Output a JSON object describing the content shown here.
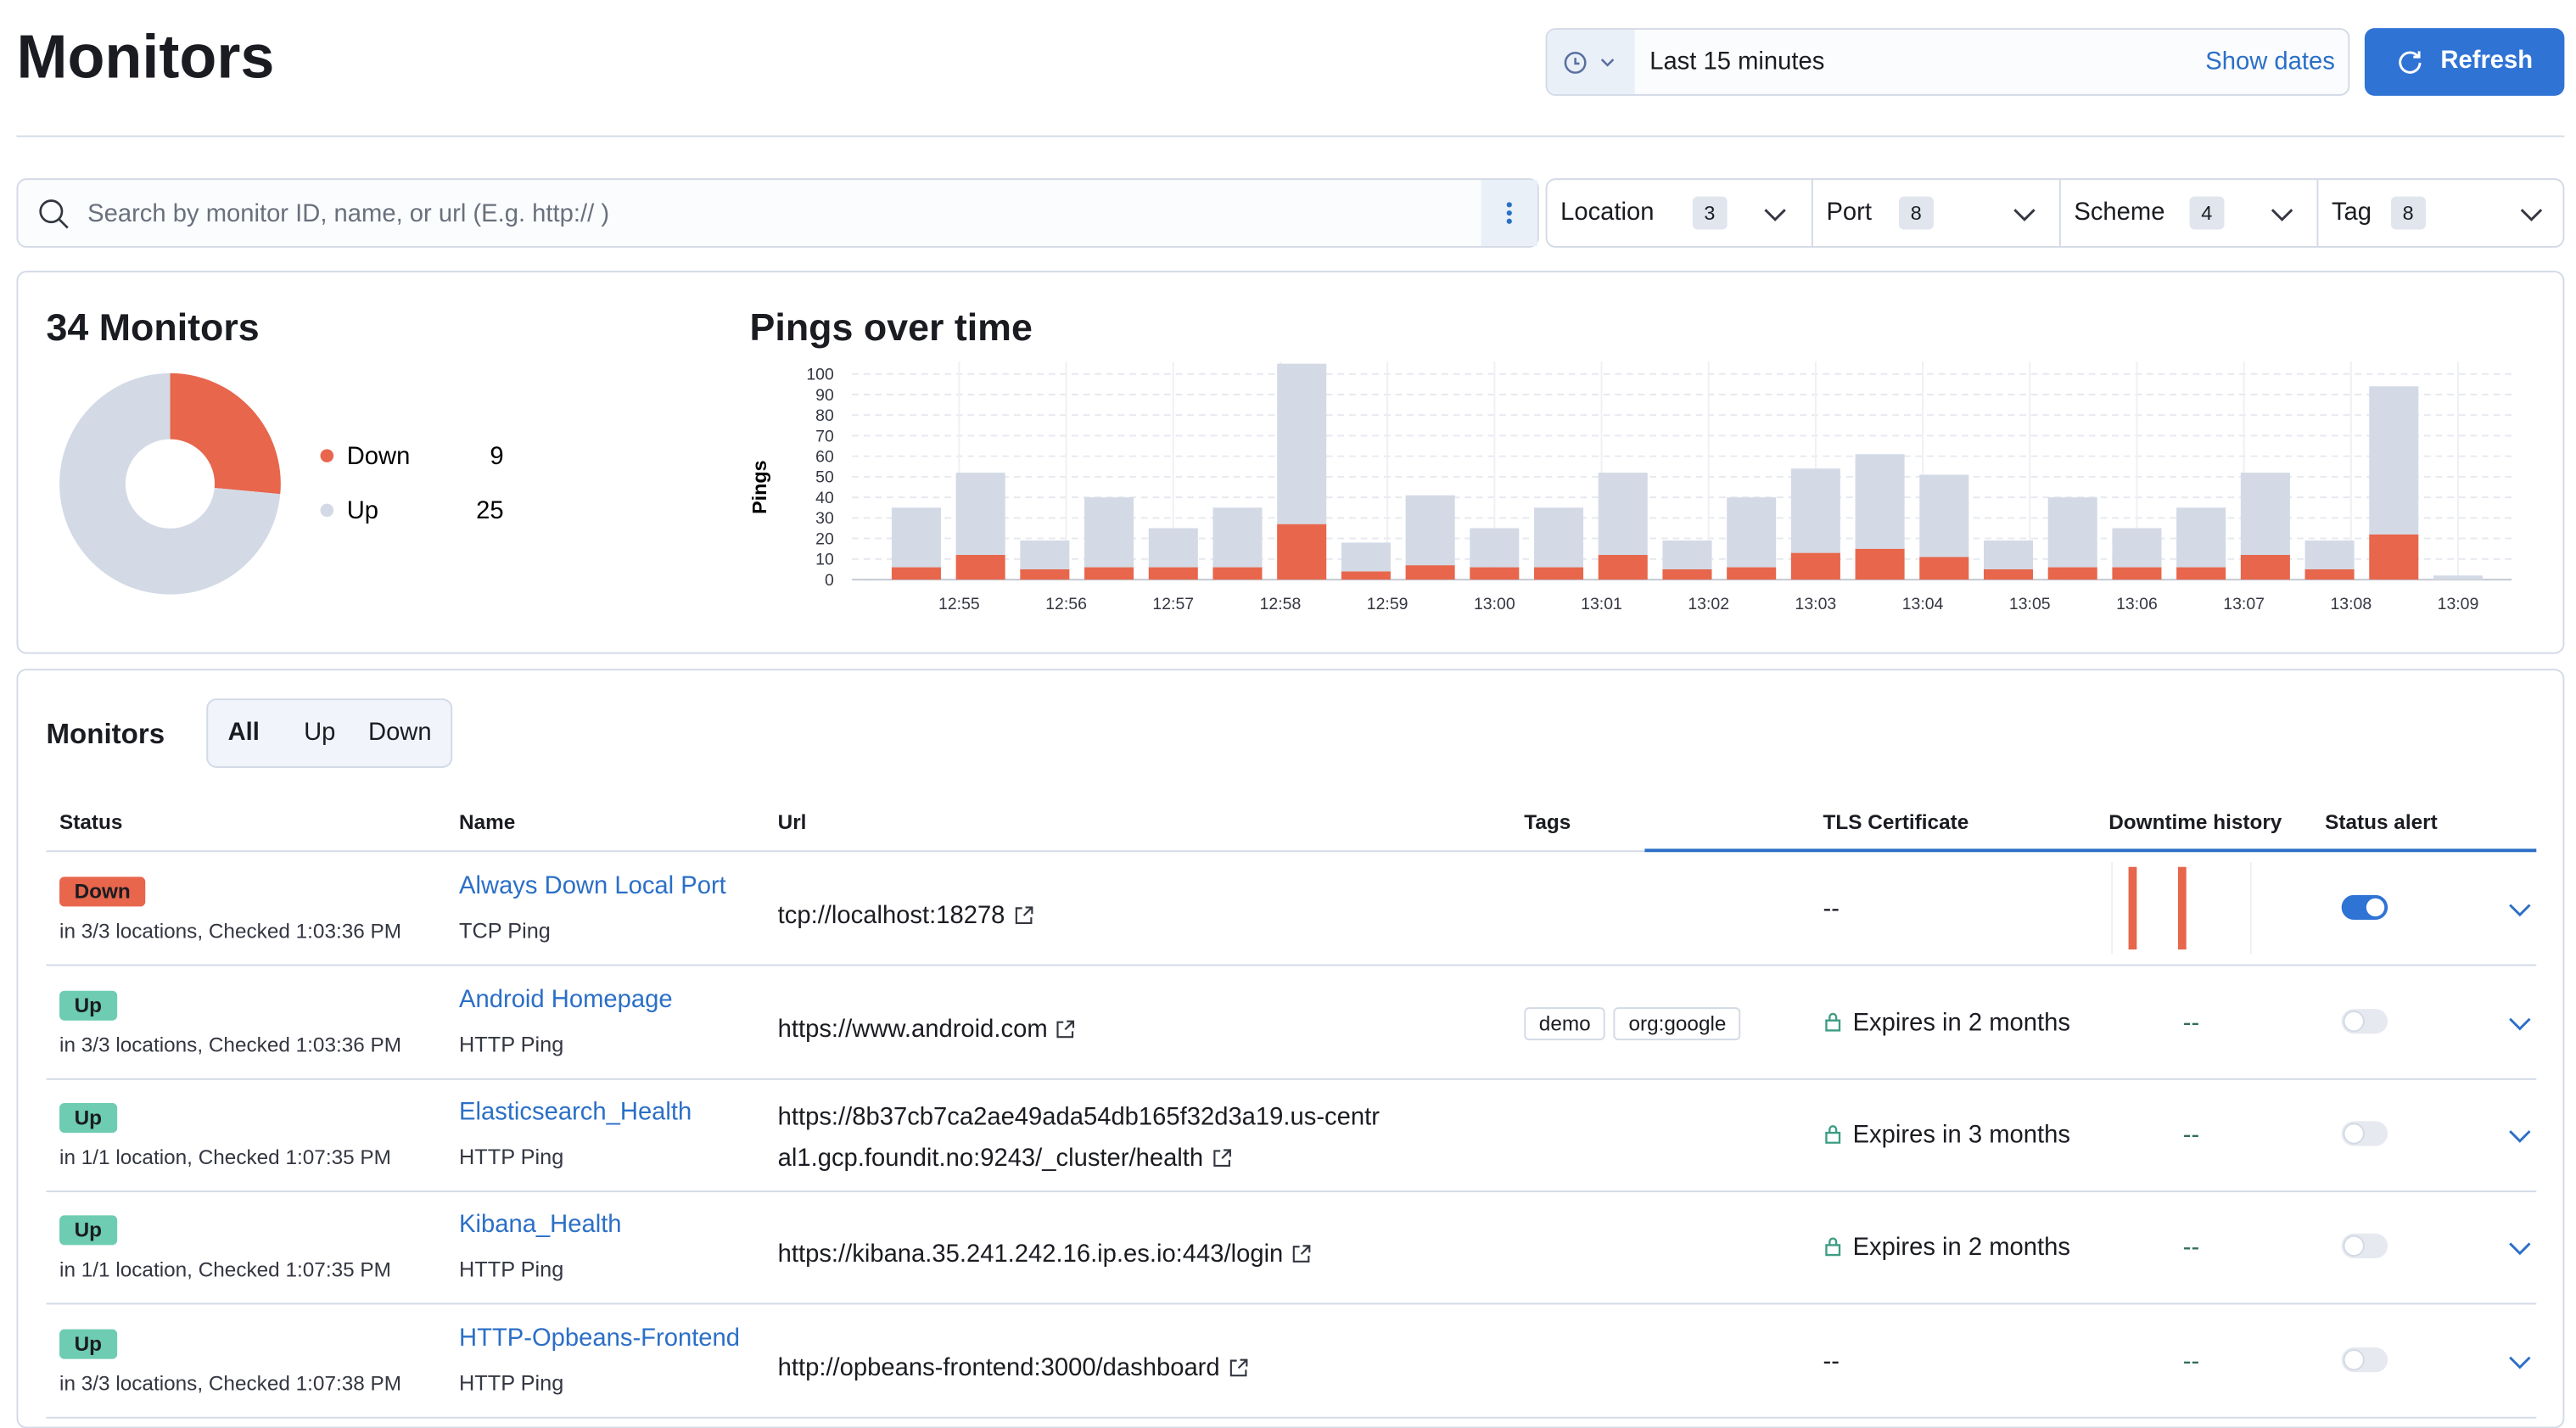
{
  "header": {
    "title": "Monitors",
    "time_range": "Last 15 minutes",
    "show_dates": "Show dates",
    "refresh": "Refresh"
  },
  "search": {
    "placeholder": "Search by monitor ID, name, or url (E.g. http:// )"
  },
  "filters": [
    {
      "label": "Location",
      "count": 3
    },
    {
      "label": "Port",
      "count": 8
    },
    {
      "label": "Scheme",
      "count": 4
    },
    {
      "label": "Tag",
      "count": 8
    }
  ],
  "chart_data": [
    {
      "type": "pie",
      "title": "34 Monitors",
      "categories": [
        "Down",
        "Up"
      ],
      "values": [
        9,
        25
      ],
      "colors": [
        "#e7664c",
        "#d3dae6"
      ],
      "donut": true
    },
    {
      "type": "bar",
      "title": "Pings over time",
      "y_label": "Pings",
      "stacked": true,
      "grid": true,
      "x": [
        774.6,
        775.2,
        775.8,
        776.4,
        777.0,
        777.6,
        778.2,
        778.8,
        779.4,
        780.0,
        780.6,
        781.2,
        781.8,
        782.4,
        783.0,
        783.6,
        784.2,
        784.8,
        785.4,
        786.0,
        786.6,
        787.2,
        787.8,
        788.4,
        789.0
      ],
      "series": [
        {
          "color": "#e7664c",
          "values": [
            6,
            12,
            5,
            6,
            6,
            6,
            27,
            4,
            7,
            6,
            6,
            12,
            5,
            6,
            13,
            15,
            11,
            5,
            6,
            6,
            6,
            12,
            5,
            22,
            0
          ]
        },
        {
          "color": "#d3dae6",
          "values": [
            29,
            40,
            14,
            34,
            19,
            29,
            78,
            14,
            34,
            19,
            29,
            40,
            14,
            34,
            41,
            46,
            40,
            14,
            34,
            19,
            29,
            40,
            14,
            72,
            2
          ]
        }
      ],
      "xlim": [
        774,
        789.5
      ],
      "xticks": [
        {
          "value": 775,
          "label": "12:55"
        },
        {
          "value": 776,
          "label": "12:56"
        },
        {
          "value": 777,
          "label": "12:57"
        },
        {
          "value": 778,
          "label": "12:58"
        },
        {
          "value": 779,
          "label": "12:59"
        },
        {
          "value": 780,
          "label": "13:00"
        },
        {
          "value": 781,
          "label": "13:01"
        },
        {
          "value": 782,
          "label": "13:02"
        },
        {
          "value": 783,
          "label": "13:03"
        },
        {
          "value": 784,
          "label": "13:04"
        },
        {
          "value": 785,
          "label": "13:05"
        },
        {
          "value": 786,
          "label": "13:06"
        },
        {
          "value": 787,
          "label": "13:07"
        },
        {
          "value": 788,
          "label": "13:08"
        },
        {
          "value": 789,
          "label": "13:09"
        }
      ],
      "ylim": [
        0,
        106
      ],
      "yticks": [
        0,
        10,
        20,
        30,
        40,
        50,
        60,
        70,
        80,
        90,
        100
      ]
    }
  ],
  "monitor_list": {
    "title": "Monitors",
    "tabs": [
      "All",
      "Up",
      "Down"
    ],
    "columns": [
      "Status",
      "Name",
      "Url",
      "Tags",
      "TLS Certificate",
      "Downtime history",
      "Status alert"
    ],
    "status_colors": {
      "Down": "#e7664c",
      "Up": "#6dccb1"
    },
    "rows": [
      {
        "status": "Down",
        "location": "in 3/3 locations, Checked 1:03:36 PM",
        "name": "Always Down Local Port",
        "type": "TCP Ping",
        "url": "tcp://localhost:18278",
        "tags": [],
        "tls": "--",
        "alert": true
      },
      {
        "status": "Up",
        "location": "in 3/3 locations, Checked 1:03:36 PM",
        "name": "Android Homepage",
        "type": "HTTP Ping",
        "url": "https://www.android.com",
        "tags": [
          "demo",
          "org:google"
        ],
        "tls": "Expires in 2 months",
        "downtime_history": "--",
        "alert": false
      },
      {
        "status": "Up",
        "location": "in 1/1 location, Checked 1:07:35 PM",
        "name": "Elasticsearch_Health",
        "type": "HTTP Ping",
        "url": "https://8b37cb7ca2ae49ada54db165f32d3a19.us-central1.gcp.foundit.no:9243/_cluster/health",
        "tags": [],
        "tls": "Expires in 3 months",
        "downtime_history": "--",
        "alert": false
      },
      {
        "status": "Up",
        "location": "in 1/1 location, Checked 1:07:35 PM",
        "name": "Kibana_Health",
        "type": "HTTP Ping",
        "url": "https://kibana.35.241.242.16.ip.es.io:443/login",
        "tags": [],
        "tls": "Expires in 2 months",
        "downtime_history": "--",
        "alert": false
      },
      {
        "status": "Up",
        "location": "in 3/3 locations, Checked 1:07:38 PM",
        "name": "HTTP-Opbeans-Frontend",
        "type": "HTTP Ping",
        "url": "http://opbeans-frontend:3000/dashboard",
        "tags": [],
        "tls": "--",
        "downtime_history": "--",
        "alert": false
      }
    ]
  }
}
